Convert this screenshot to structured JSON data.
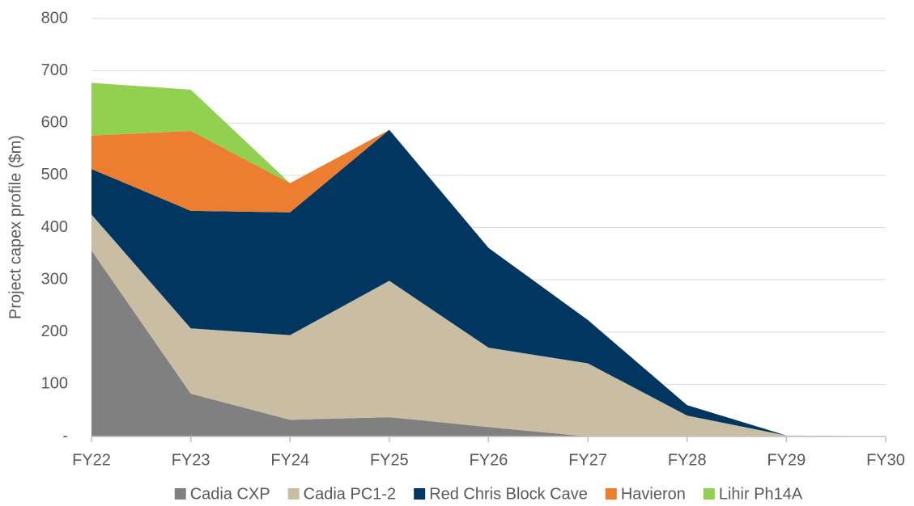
{
  "chart_data": {
    "type": "stacked-area",
    "y_label": "Project capex profile ($m)",
    "categories": [
      "FY22",
      "FY23",
      "FY24",
      "FY25",
      "FY26",
      "FY27",
      "FY28",
      "FY29",
      "FY30"
    ],
    "series": [
      {
        "name": "Cadia CXP",
        "color": "#808080",
        "values": [
          356,
          82,
          32,
          37,
          18,
          0,
          0,
          0,
          0
        ]
      },
      {
        "name": "Cadia PC1-2",
        "color": "#c9bea3",
        "values": [
          69,
          125,
          162,
          261,
          152,
          140,
          40,
          2,
          0
        ]
      },
      {
        "name": "Red Chris Block Cave",
        "color": "#003660",
        "values": [
          87,
          225,
          235,
          289,
          191,
          83,
          20,
          0,
          0
        ]
      },
      {
        "name": "Havieron",
        "color": "#ed7d31",
        "values": [
          64,
          153,
          56,
          0,
          0,
          0,
          0,
          0,
          0
        ]
      },
      {
        "name": "Lihir Ph14A",
        "color": "#92d050",
        "values": [
          101,
          79,
          0,
          0,
          0,
          0,
          0,
          0,
          0
        ]
      }
    ],
    "ylim": [
      0,
      800
    ],
    "yticks": [
      {
        "value": 0,
        "label": "-"
      },
      100,
      200,
      300,
      400,
      500,
      600,
      700,
      800
    ],
    "grid": true,
    "legend": "bottom"
  }
}
